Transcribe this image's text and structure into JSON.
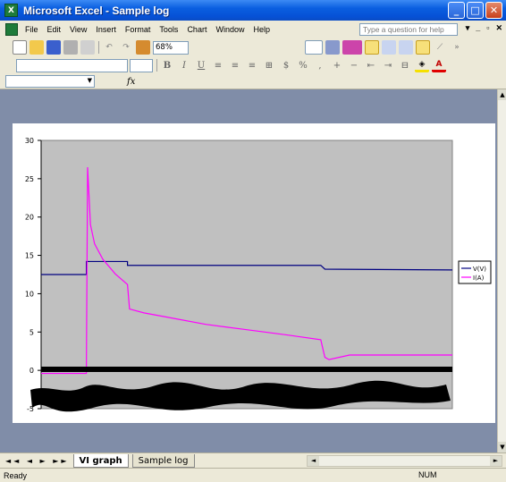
{
  "window": {
    "title": "Microsoft Excel - Sample log"
  },
  "menu": {
    "items": [
      "File",
      "Edit",
      "View",
      "Insert",
      "Format",
      "Tools",
      "Chart",
      "Window",
      "Help"
    ],
    "help_placeholder": "Type a question for help"
  },
  "toolbar": {
    "zoom": "68%"
  },
  "sheet_tabs": [
    {
      "label": "VI graph",
      "active": true
    },
    {
      "label": "Sample log",
      "active": false
    }
  ],
  "status": {
    "text": "Ready",
    "num": "NUM"
  },
  "colors": {
    "plot_bg": "#c0c0c0",
    "series_v": "#000080",
    "series_i": "#ff00ff",
    "workspace": "#808da8"
  },
  "chart_data": {
    "type": "line",
    "ylim": [
      -5,
      30
    ],
    "yticks": [
      -5,
      0,
      5,
      10,
      15,
      20,
      25,
      30
    ],
    "legend_position": "right",
    "series": [
      {
        "name": "V(V)",
        "points": [
          [
            0,
            12.5
          ],
          [
            11,
            12.5
          ],
          [
            11,
            14.2
          ],
          [
            21,
            14.2
          ],
          [
            21,
            13.7
          ],
          [
            68,
            13.7
          ],
          [
            69,
            13.2
          ],
          [
            100,
            13.1
          ]
        ]
      },
      {
        "name": "I(A)",
        "points": [
          [
            0,
            -0.4
          ],
          [
            11,
            -0.4
          ],
          [
            11.3,
            26.5
          ],
          [
            12,
            19
          ],
          [
            13,
            16.5
          ],
          [
            15,
            14.5
          ],
          [
            18,
            12.6
          ],
          [
            21,
            11.2
          ],
          [
            21.5,
            8
          ],
          [
            25,
            7.5
          ],
          [
            30,
            7
          ],
          [
            40,
            6
          ],
          [
            50,
            5.3
          ],
          [
            60,
            4.6
          ],
          [
            68,
            4
          ],
          [
            69,
            1.7
          ],
          [
            70,
            1.4
          ],
          [
            75,
            2
          ],
          [
            100,
            2
          ]
        ]
      }
    ]
  }
}
